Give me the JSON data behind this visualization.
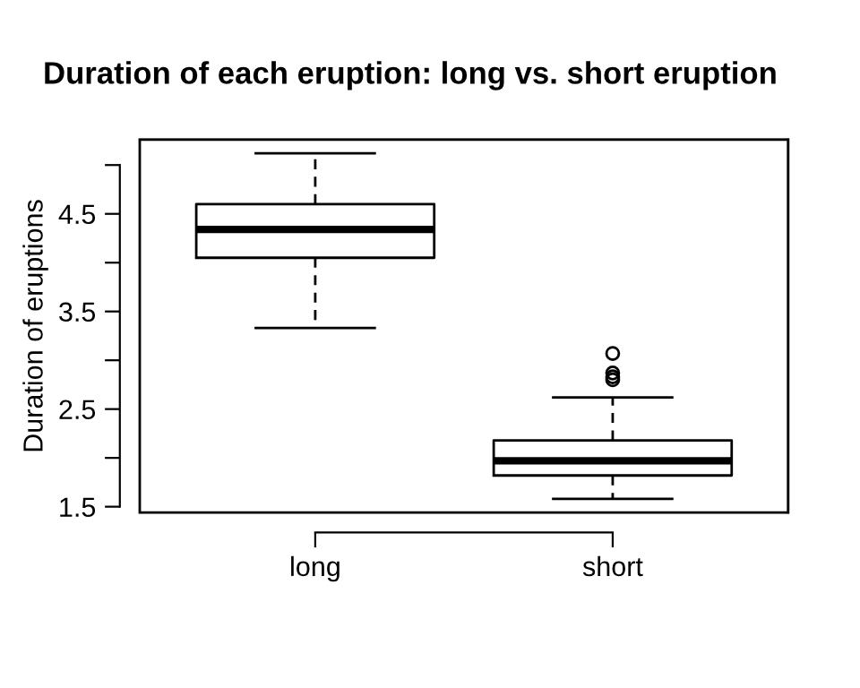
{
  "chart_data": {
    "type": "box",
    "title": "Duration of each eruption: long vs. short eruption",
    "ylabel": "Duration of eruptions",
    "categories": [
      "long",
      "short"
    ],
    "boxes": [
      {
        "low": 3.33,
        "q1": 4.05,
        "median": 4.34,
        "q3": 4.6,
        "high": 5.12
      },
      {
        "low": 1.58,
        "q1": 1.82,
        "median": 1.97,
        "q3": 2.18,
        "high": 2.62,
        "outliers": [
          3.07,
          2.87,
          2.83,
          2.8
        ]
      }
    ],
    "ylim": [
      1.44,
      5.26
    ],
    "yticks": [
      1.5,
      {
        "value": 2,
        "label": null
      },
      2.5,
      {
        "value": 3,
        "label": null
      },
      3.5,
      {
        "value": 4,
        "label": null
      },
      4.5,
      {
        "value": 5,
        "label": null
      }
    ],
    "grid": false,
    "legend": false
  }
}
